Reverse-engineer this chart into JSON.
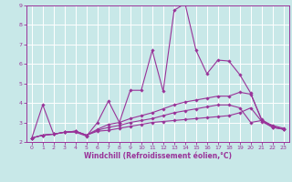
{
  "title": "",
  "xlabel": "Windchill (Refroidissement éolien,°C)",
  "xlim": [
    -0.5,
    23.5
  ],
  "ylim": [
    2,
    9
  ],
  "xticks": [
    0,
    1,
    2,
    3,
    4,
    5,
    6,
    7,
    8,
    9,
    10,
    11,
    12,
    13,
    14,
    15,
    16,
    17,
    18,
    19,
    20,
    21,
    22,
    23
  ],
  "yticks": [
    2,
    3,
    4,
    5,
    6,
    7,
    8,
    9
  ],
  "bg_color": "#c8e8e8",
  "line_color": "#993399",
  "grid_color": "#ffffff",
  "lines": [
    [
      2.2,
      3.9,
      2.4,
      2.5,
      2.5,
      2.3,
      3.0,
      4.1,
      3.0,
      4.65,
      4.65,
      6.7,
      4.6,
      8.75,
      9.1,
      6.7,
      5.5,
      6.2,
      6.15,
      5.45,
      4.5,
      3.1,
      2.85,
      2.7
    ],
    [
      2.2,
      2.35,
      2.4,
      2.5,
      2.55,
      2.35,
      2.55,
      2.6,
      2.7,
      2.8,
      2.9,
      3.0,
      3.05,
      3.1,
      3.15,
      3.2,
      3.25,
      3.3,
      3.35,
      3.5,
      3.75,
      3.05,
      2.75,
      2.65
    ],
    [
      2.2,
      2.35,
      2.4,
      2.5,
      2.55,
      2.35,
      2.6,
      2.75,
      2.85,
      3.0,
      3.1,
      3.2,
      3.35,
      3.5,
      3.6,
      3.7,
      3.8,
      3.9,
      3.9,
      3.75,
      3.0,
      3.1,
      2.75,
      2.65
    ],
    [
      2.2,
      2.35,
      2.4,
      2.5,
      2.55,
      2.35,
      2.65,
      2.9,
      3.0,
      3.2,
      3.35,
      3.5,
      3.7,
      3.9,
      4.05,
      4.15,
      4.25,
      4.35,
      4.35,
      4.55,
      4.45,
      3.15,
      2.8,
      2.65
    ]
  ]
}
